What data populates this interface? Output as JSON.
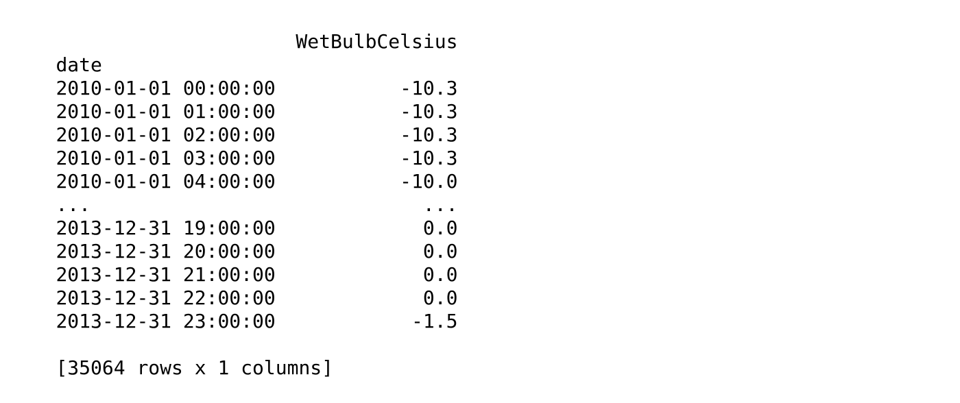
{
  "dataframe": {
    "column_header": "WetBulbCelsius",
    "index_name": "date",
    "rows": [
      {
        "index": "2010-01-01 00:00:00",
        "value": "-10.3"
      },
      {
        "index": "2010-01-01 01:00:00",
        "value": "-10.3"
      },
      {
        "index": "2010-01-01 02:00:00",
        "value": "-10.3"
      },
      {
        "index": "2010-01-01 03:00:00",
        "value": "-10.3"
      },
      {
        "index": "2010-01-01 04:00:00",
        "value": "-10.0"
      },
      {
        "index": "...",
        "value": "..."
      },
      {
        "index": "2013-12-31 19:00:00",
        "value": "0.0"
      },
      {
        "index": "2013-12-31 20:00:00",
        "value": "0.0"
      },
      {
        "index": "2013-12-31 21:00:00",
        "value": "0.0"
      },
      {
        "index": "2013-12-31 22:00:00",
        "value": "0.0"
      },
      {
        "index": "2013-12-31 23:00:00",
        "value": "-1.5"
      }
    ],
    "shape_summary": "[35064 rows x 1 columns]"
  }
}
